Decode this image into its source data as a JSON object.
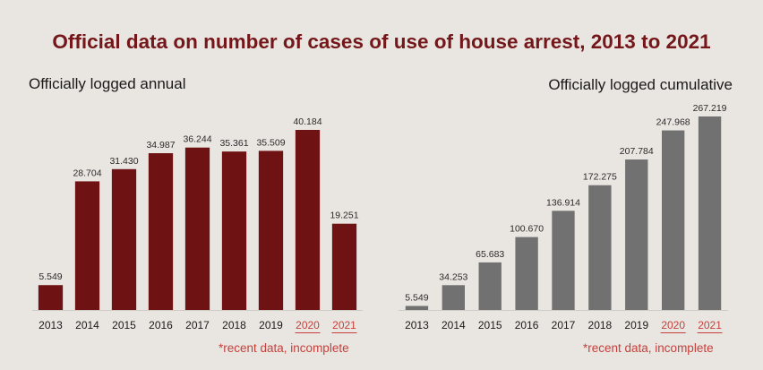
{
  "title": "Official data on number of cases of use of house arrest, 2013 to 2021",
  "colors": {
    "title": "#74171a",
    "annual_bar": "#6f1213",
    "cumulative_bar": "#717171",
    "incomplete": "#c5403c",
    "axis_text": "#1a1a1a",
    "value_text": "#2a2a2a",
    "baseline": "#cfcbc5"
  },
  "chart_data": [
    {
      "type": "bar",
      "title": "Officially logged annual",
      "categories": [
        "2013",
        "2014",
        "2015",
        "2016",
        "2017",
        "2018",
        "2019",
        "2020",
        "2021"
      ],
      "values": [
        5549,
        28704,
        31430,
        34987,
        36244,
        35361,
        35509,
        40184,
        19251
      ],
      "value_labels": [
        "5.549",
        "28.704",
        "31.430",
        "34.987",
        "36.244",
        "35.361",
        "35.509",
        "40.184",
        "19.251"
      ],
      "incomplete_categories": [
        "2020",
        "2021"
      ],
      "note": "*recent data, incomplete",
      "grid": false
    },
    {
      "type": "bar",
      "title": "Officially logged  cumulative",
      "categories": [
        "2013",
        "2014",
        "2015",
        "2016",
        "2017",
        "2018",
        "2019",
        "2020",
        "2021"
      ],
      "values": [
        5549,
        34253,
        65683,
        100670,
        136914,
        172275,
        207784,
        247968,
        267219
      ],
      "value_labels": [
        "5.549",
        "34.253",
        "65.683",
        "100.670",
        "136.914",
        "172.275",
        "207.784",
        "247.968",
        "267.219"
      ],
      "incomplete_categories": [
        "2020",
        "2021"
      ],
      "note": "*recent data, incomplete",
      "grid": false
    }
  ]
}
